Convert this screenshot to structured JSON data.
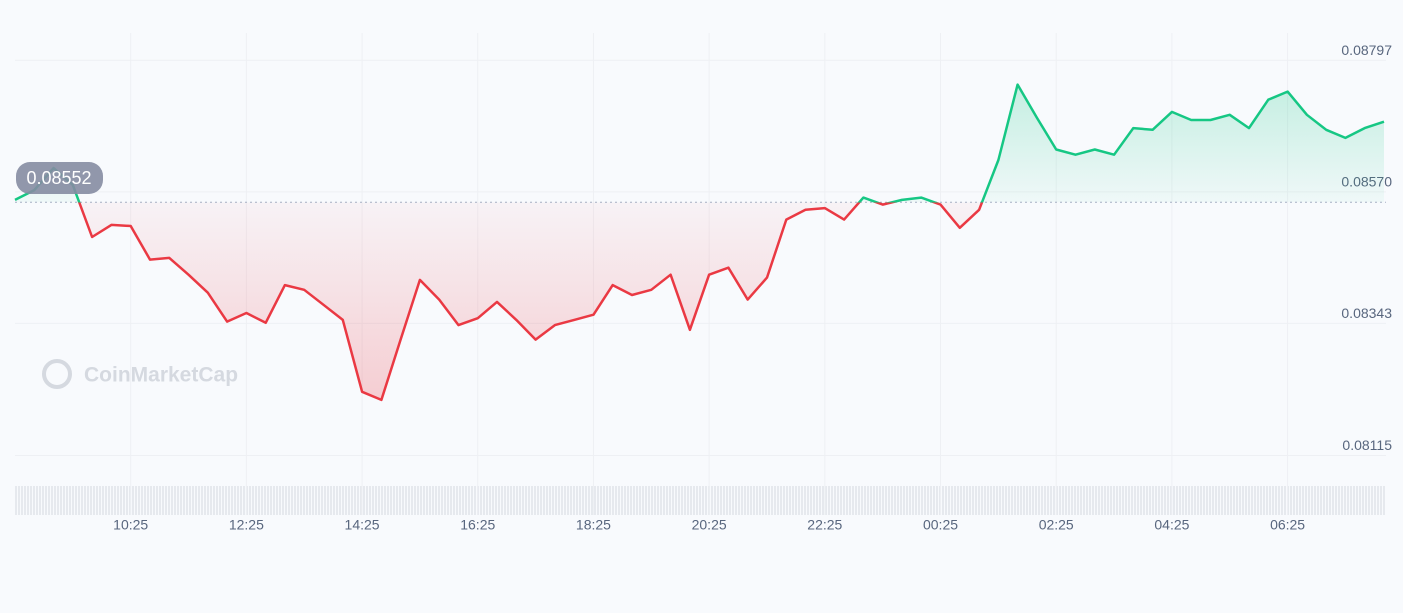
{
  "chart_data": {
    "type": "line",
    "watermark": "CoinMarketCap",
    "reference": 0.08552,
    "x": [
      "08:25",
      "08:45",
      "09:05",
      "09:25",
      "09:45",
      "10:05",
      "10:25",
      "10:45",
      "11:05",
      "11:25",
      "11:45",
      "12:05",
      "12:25",
      "12:45",
      "13:05",
      "13:25",
      "13:45",
      "14:05",
      "14:25",
      "14:45",
      "15:05",
      "15:25",
      "15:45",
      "16:05",
      "16:25",
      "16:45",
      "17:05",
      "17:25",
      "17:45",
      "18:05",
      "18:25",
      "18:45",
      "19:05",
      "19:25",
      "19:45",
      "20:05",
      "20:25",
      "20:45",
      "21:05",
      "21:25",
      "21:45",
      "22:05",
      "22:25",
      "22:45",
      "23:05",
      "23:25",
      "23:45",
      "00:05",
      "00:25",
      "00:45",
      "01:05",
      "01:25",
      "01:45",
      "02:05",
      "02:25",
      "02:45",
      "03:05",
      "03:25",
      "03:45",
      "04:05",
      "04:25",
      "04:45",
      "05:05",
      "05:25",
      "05:45",
      "06:05",
      "06:25",
      "06:45",
      "07:05",
      "07:25",
      "07:45",
      "08:05"
    ],
    "values": [
      0.08556,
      0.08573,
      0.08611,
      0.08582,
      0.08492,
      0.08513,
      0.08511,
      0.08453,
      0.08456,
      0.08427,
      0.08396,
      0.08346,
      0.08361,
      0.08344,
      0.08409,
      0.08401,
      0.08375,
      0.08349,
      0.08225,
      0.08211,
      0.08315,
      0.08418,
      0.08384,
      0.0834,
      0.08352,
      0.0838,
      0.08349,
      0.08315,
      0.0834,
      0.08349,
      0.08358,
      0.08409,
      0.08392,
      0.08401,
      0.08427,
      0.08332,
      0.08427,
      0.08439,
      0.08384,
      0.08422,
      0.08522,
      0.08539,
      0.08542,
      0.08522,
      0.0856,
      0.08548,
      0.08556,
      0.0856,
      0.08548,
      0.08508,
      0.08539,
      0.08625,
      0.08755,
      0.08698,
      0.08643,
      0.08634,
      0.08643,
      0.08634,
      0.0868,
      0.08677,
      0.08708,
      0.08694,
      0.08694,
      0.08703,
      0.0868,
      0.08729,
      0.08743,
      0.08703,
      0.08677,
      0.08663,
      0.0868,
      0.08691
    ],
    "up_color": "#16c784",
    "down_color": "#ea3943",
    "xlim": [
      "08:25",
      "08:05"
    ],
    "xticks": [
      "10:25",
      "12:25",
      "14:25",
      "16:25",
      "18:25",
      "20:25",
      "22:25",
      "00:25",
      "02:25",
      "04:25",
      "06:25"
    ],
    "ylim": [
      0.0809,
      0.08832
    ],
    "yticks": [
      0.08115,
      0.08343,
      {
        "value": 0.0857,
        "label": "0.08570"
      },
      0.08797
    ],
    "grid": true
  }
}
